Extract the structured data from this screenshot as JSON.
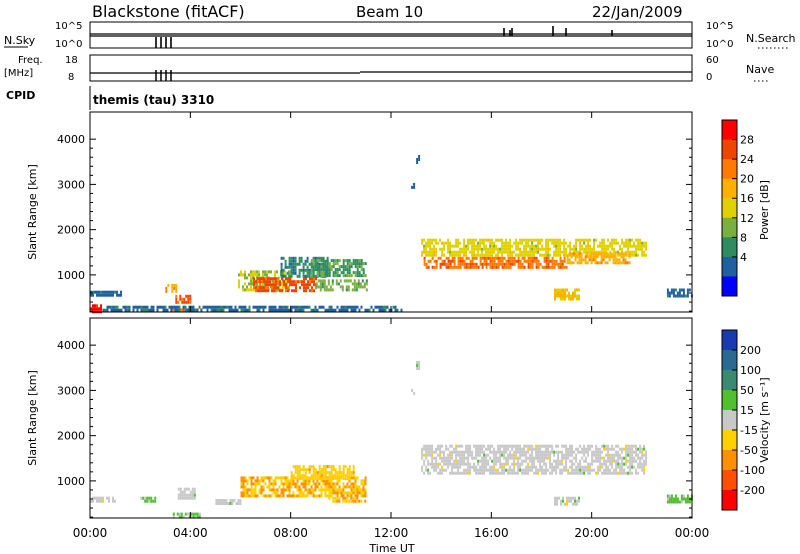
{
  "header": {
    "station": "Blackstone (fitACF)",
    "beam": "Beam 10",
    "date": "22/Jan/2009"
  },
  "noise_panel": {
    "left_label": "N.Sky",
    "left_ticks": [
      "10^5",
      "10^0"
    ],
    "right_label": "N.Search",
    "right_ticks": [
      "10^5",
      "10^0"
    ]
  },
  "freq_panel": {
    "left_label_1": "Freq.",
    "left_label_2": "[MHz]",
    "left_ticks": [
      "18",
      "8"
    ],
    "right_label": "Nave",
    "right_ticks": [
      "60",
      "0"
    ]
  },
  "cpid": {
    "label": "CPID",
    "value": "themis (tau) 3310"
  },
  "axes": {
    "ylabel": "Slant Range [km]",
    "xlabel": "Time UT",
    "y_ticks": [
      "4000",
      "3000",
      "2000",
      "1000"
    ],
    "x_ticks": [
      "00:00",
      "04:00",
      "08:00",
      "12:00",
      "16:00",
      "20:00",
      "00:00"
    ]
  },
  "power_colorbar": {
    "label": "Power [dB]",
    "ticks": [
      "28",
      "24",
      "20",
      "16",
      "12",
      "8",
      "4"
    ],
    "colors": [
      "#ff0000",
      "#f04500",
      "#ff7a00",
      "#ffb000",
      "#e0d000",
      "#7ab040",
      "#2e8c60",
      "#2060a0",
      "#0000ff"
    ]
  },
  "velocity_colorbar": {
    "label": "Velocity [m s⁻¹]",
    "ticks": [
      "200",
      "100",
      "50",
      "15",
      "-15",
      "-50",
      "-100",
      "-200"
    ],
    "colors": [
      "#1a3ab0",
      "#2a6a90",
      "#3a8a70",
      "#50c030",
      "#c8c8c8",
      "#ffd000",
      "#ff9000",
      "#ff5000",
      "#ff0000"
    ]
  },
  "chart_data": [
    {
      "type": "heatmap",
      "title": "Power [dB]",
      "xlabel": "Time UT",
      "ylabel": "Slant Range [km]",
      "xlim": [
        0,
        24
      ],
      "ylim": [
        180,
        4600
      ],
      "zlim": [
        0,
        32
      ],
      "regions": [
        {
          "t": [
            0.0,
            0.4
          ],
          "r": [
            200,
            350
          ],
          "value": 30
        },
        {
          "t": [
            0.0,
            1.2
          ],
          "r": [
            570,
            650
          ],
          "value": 6
        },
        {
          "t": [
            3.0,
            3.4
          ],
          "r": [
            650,
            800
          ],
          "value": 20
        },
        {
          "t": [
            3.4,
            4.0
          ],
          "r": [
            400,
            560
          ],
          "value": 26
        },
        {
          "t": [
            3.2,
            4.4
          ],
          "r": [
            200,
            260
          ],
          "value": 24
        },
        {
          "t": [
            5.9,
            8.0
          ],
          "r": [
            700,
            1100
          ],
          "value": 14
        },
        {
          "t": [
            6.5,
            9.0
          ],
          "r": [
            650,
            950
          ],
          "value": 26
        },
        {
          "t": [
            7.6,
            9.5
          ],
          "r": [
            1000,
            1400
          ],
          "value": 8
        },
        {
          "t": [
            8.8,
            11.0
          ],
          "r": [
            1000,
            1350
          ],
          "value": 10
        },
        {
          "t": [
            9.0,
            11.0
          ],
          "r": [
            700,
            900
          ],
          "value": 12
        },
        {
          "t": [
            0.5,
            12.5
          ],
          "r": [
            220,
            320
          ],
          "value": 6
        },
        {
          "t": [
            13.2,
            22.2
          ],
          "r": [
            1450,
            1800
          ],
          "value": 16
        },
        {
          "t": [
            13.3,
            19.0
          ],
          "r": [
            1200,
            1400
          ],
          "value": 24
        },
        {
          "t": [
            19.0,
            21.5
          ],
          "r": [
            1300,
            1500
          ],
          "value": 20
        },
        {
          "t": [
            18.5,
            19.5
          ],
          "r": [
            500,
            700
          ],
          "value": 18
        },
        {
          "t": [
            23.0,
            24.0
          ],
          "r": [
            560,
            700
          ],
          "value": 6
        },
        {
          "t": [
            13.0,
            13.1
          ],
          "r": [
            3500,
            3650
          ],
          "value": 6
        },
        {
          "t": [
            12.8,
            12.9
          ],
          "r": [
            2950,
            3100
          ],
          "value": 6
        }
      ]
    },
    {
      "type": "heatmap",
      "title": "Velocity [m s⁻¹]",
      "xlabel": "Time UT",
      "ylabel": "Slant Range [km]",
      "xlim": [
        0,
        24
      ],
      "ylim": [
        180,
        4600
      ],
      "zlim": [
        -250,
        250
      ],
      "regions": [
        {
          "t": [
            0.0,
            1.0
          ],
          "r": [
            570,
            650
          ],
          "value": 0
        },
        {
          "t": [
            2.0,
            2.6
          ],
          "r": [
            580,
            650
          ],
          "value": 30
        },
        {
          "t": [
            3.5,
            4.2
          ],
          "r": [
            600,
            850
          ],
          "value": 0
        },
        {
          "t": [
            3.3,
            4.4
          ],
          "r": [
            220,
            300
          ],
          "value": 30
        },
        {
          "t": [
            5.0,
            6.0
          ],
          "r": [
            500,
            600
          ],
          "value": 0
        },
        {
          "t": [
            6.0,
            11.0
          ],
          "r": [
            650,
            1100
          ],
          "value": -80
        },
        {
          "t": [
            8.0,
            10.5
          ],
          "r": [
            1050,
            1350
          ],
          "value": -60
        },
        {
          "t": [
            9.5,
            11.0
          ],
          "r": [
            550,
            650
          ],
          "value": -80
        },
        {
          "t": [
            13.2,
            22.2
          ],
          "r": [
            1200,
            1800
          ],
          "value": 0
        },
        {
          "t": [
            18.5,
            19.5
          ],
          "r": [
            500,
            650
          ],
          "value": 0
        },
        {
          "t": [
            23.0,
            24.0
          ],
          "r": [
            560,
            700
          ],
          "value": 40
        },
        {
          "t": [
            13.0,
            13.1
          ],
          "r": [
            3500,
            3650
          ],
          "value": 0
        },
        {
          "t": [
            12.8,
            12.9
          ],
          "r": [
            2950,
            3100
          ],
          "value": 0
        }
      ]
    }
  ]
}
